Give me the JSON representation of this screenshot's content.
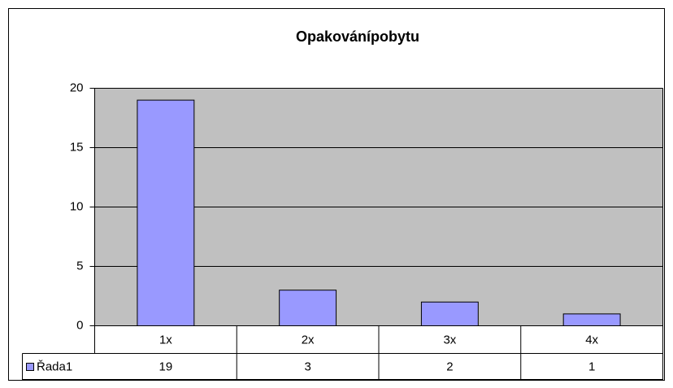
{
  "chart_data": {
    "type": "bar",
    "title": "Opakovánípobytu",
    "categories": [
      "1x",
      "2x",
      "3x",
      "4x"
    ],
    "series": [
      {
        "name": "Řada1",
        "color": "#9999ff",
        "values": [
          19,
          3,
          2,
          1
        ]
      }
    ],
    "ylim": [
      0,
      20
    ],
    "yticks": [
      0,
      5,
      10,
      15,
      20
    ],
    "grid": true
  }
}
